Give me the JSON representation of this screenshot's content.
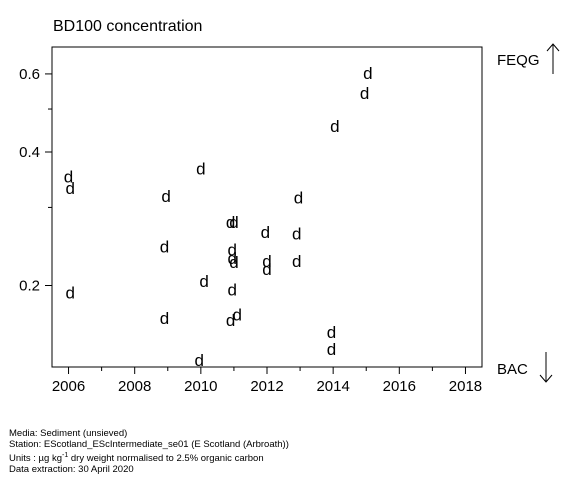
{
  "chart_data": {
    "type": "scatter",
    "title": "BD100 concentration",
    "marker": "d",
    "y_scale": "log",
    "xlim": [
      2005.5,
      2018.5
    ],
    "ylim": [
      0.131,
      0.69
    ],
    "x_ticks": [
      2006,
      2008,
      2010,
      2012,
      2014,
      2016,
      2018
    ],
    "x_tick_labels": [
      "2006",
      "2008",
      "2010",
      "2012",
      "2014",
      "2016",
      "2018"
    ],
    "y_ticks": [
      0.2,
      0.4,
      0.6
    ],
    "y_tick_labels": [
      "0.2",
      "0.4",
      "0.6"
    ],
    "points": [
      {
        "x": 2006.0,
        "y": 0.352
      },
      {
        "x": 2006.05,
        "y": 0.332
      },
      {
        "x": 2006.05,
        "y": 0.193
      },
      {
        "x": 2008.95,
        "y": 0.318
      },
      {
        "x": 2008.9,
        "y": 0.245
      },
      {
        "x": 2008.9,
        "y": 0.169
      },
      {
        "x": 2010.0,
        "y": 0.367
      },
      {
        "x": 2010.1,
        "y": 0.205
      },
      {
        "x": 2009.95,
        "y": 0.136
      },
      {
        "x": 2010.9,
        "y": 0.278
      },
      {
        "x": 2011.0,
        "y": 0.278
      },
      {
        "x": 2010.95,
        "y": 0.241
      },
      {
        "x": 2010.95,
        "y": 0.231
      },
      {
        "x": 2011.0,
        "y": 0.226
      },
      {
        "x": 2010.95,
        "y": 0.196
      },
      {
        "x": 2011.1,
        "y": 0.172
      },
      {
        "x": 2010.9,
        "y": 0.167
      },
      {
        "x": 2011.95,
        "y": 0.264
      },
      {
        "x": 2012.0,
        "y": 0.227
      },
      {
        "x": 2012.0,
        "y": 0.218
      },
      {
        "x": 2012.95,
        "y": 0.316
      },
      {
        "x": 2012.9,
        "y": 0.262
      },
      {
        "x": 2012.9,
        "y": 0.227
      },
      {
        "x": 2014.05,
        "y": 0.458
      },
      {
        "x": 2013.95,
        "y": 0.157
      },
      {
        "x": 2013.95,
        "y": 0.144
      },
      {
        "x": 2015.05,
        "y": 0.603
      },
      {
        "x": 2014.95,
        "y": 0.543
      }
    ],
    "threshold_labels": {
      "upper": "FEQG",
      "lower": "BAC"
    }
  },
  "footer": {
    "media": "Media: Sediment (unsieved)",
    "station": "Station: EScotland_EScIntermediate_se01 (E Scotland (Arbroath))",
    "units_prefix": "Units : µg kg",
    "units_sup": "-1",
    "units_suffix": " dry weight normalised to 2.5% organic carbon",
    "extraction": "Data extraction: 30 April 2020"
  }
}
